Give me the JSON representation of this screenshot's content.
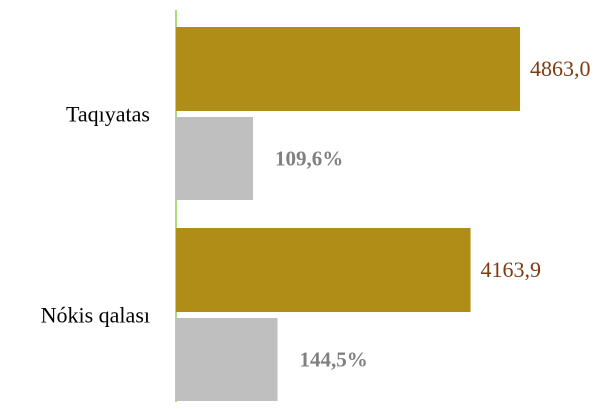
{
  "chart_data": {
    "type": "bar",
    "orientation": "horizontal",
    "categories": [
      "Taqıyatas",
      "Nókis qalası"
    ],
    "series": [
      {
        "values": [
          4863.0,
          4163.9
        ],
        "labels": [
          "4863,0",
          "4163,9"
        ],
        "color": "#B08D16",
        "label_color": "#7F3A12"
      },
      {
        "values": [
          109.6,
          144.5
        ],
        "labels": [
          "109,6%",
          "144,5%"
        ],
        "color": "#BFBFBF",
        "label_color": "#808080",
        "label_bold": true
      }
    ],
    "axis_line_color": "#92D050",
    "grid": false,
    "legend": "none"
  }
}
